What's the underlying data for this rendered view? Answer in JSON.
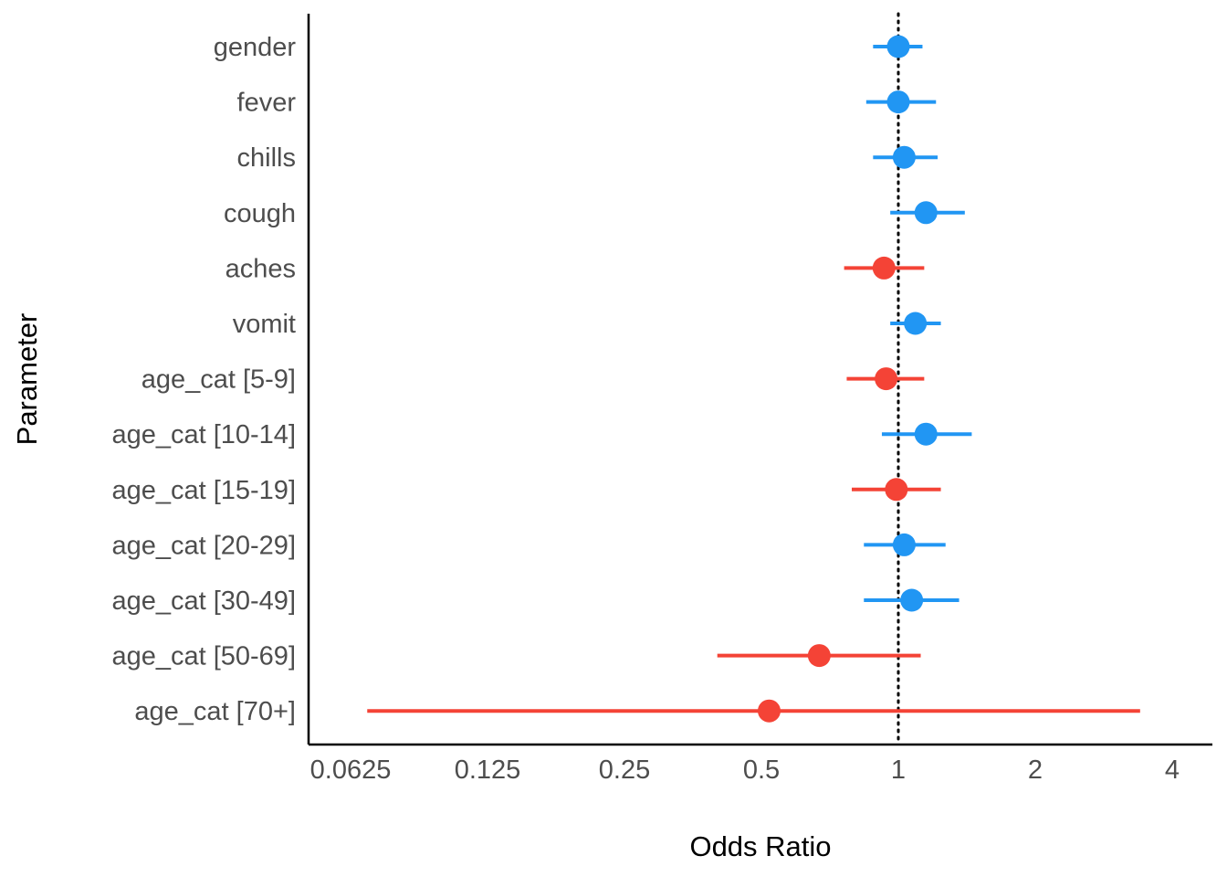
{
  "chart_data": {
    "type": "scatter",
    "subtype": "forest-plot",
    "title": "",
    "xlabel": "Odds Ratio",
    "ylabel": "Parameter",
    "x_scale": "log2",
    "xlim": [
      0.0625,
      5
    ],
    "xticks": [
      0.0625,
      0.125,
      0.25,
      0.5,
      1,
      2,
      4
    ],
    "xtick_labels": [
      "0.0625",
      "0.125",
      "0.25",
      "0.5",
      "1",
      "2",
      "4"
    ],
    "reference_line": 1,
    "grid": false,
    "legend": "none",
    "colors": {
      "positive": "#2196F3",
      "negative": "#F44336"
    },
    "rows": [
      {
        "parameter": "gender",
        "estimate": 1.0,
        "ci_low": 0.88,
        "ci_high": 1.13,
        "direction": "positive"
      },
      {
        "parameter": "fever",
        "estimate": 1.0,
        "ci_low": 0.85,
        "ci_high": 1.21,
        "direction": "positive"
      },
      {
        "parameter": "chills",
        "estimate": 1.03,
        "ci_low": 0.88,
        "ci_high": 1.22,
        "direction": "positive"
      },
      {
        "parameter": "cough",
        "estimate": 1.15,
        "ci_low": 0.96,
        "ci_high": 1.4,
        "direction": "positive"
      },
      {
        "parameter": "aches",
        "estimate": 0.93,
        "ci_low": 0.76,
        "ci_high": 1.14,
        "direction": "negative"
      },
      {
        "parameter": "vomit",
        "estimate": 1.09,
        "ci_low": 0.96,
        "ci_high": 1.24,
        "direction": "positive"
      },
      {
        "parameter": "age_cat [5-9]",
        "estimate": 0.94,
        "ci_low": 0.77,
        "ci_high": 1.14,
        "direction": "negative"
      },
      {
        "parameter": "age_cat [10-14]",
        "estimate": 1.15,
        "ci_low": 0.92,
        "ci_high": 1.45,
        "direction": "positive"
      },
      {
        "parameter": "age_cat [15-19]",
        "estimate": 0.99,
        "ci_low": 0.79,
        "ci_high": 1.24,
        "direction": "negative"
      },
      {
        "parameter": "age_cat [20-29]",
        "estimate": 1.03,
        "ci_low": 0.84,
        "ci_high": 1.27,
        "direction": "positive"
      },
      {
        "parameter": "age_cat [30-49]",
        "estimate": 1.07,
        "ci_low": 0.84,
        "ci_high": 1.36,
        "direction": "positive"
      },
      {
        "parameter": "age_cat [50-69]",
        "estimate": 0.67,
        "ci_low": 0.4,
        "ci_high": 1.12,
        "direction": "negative"
      },
      {
        "parameter": "age_cat [70+]",
        "estimate": 0.52,
        "ci_low": 0.068,
        "ci_high": 3.4,
        "direction": "negative"
      }
    ]
  }
}
